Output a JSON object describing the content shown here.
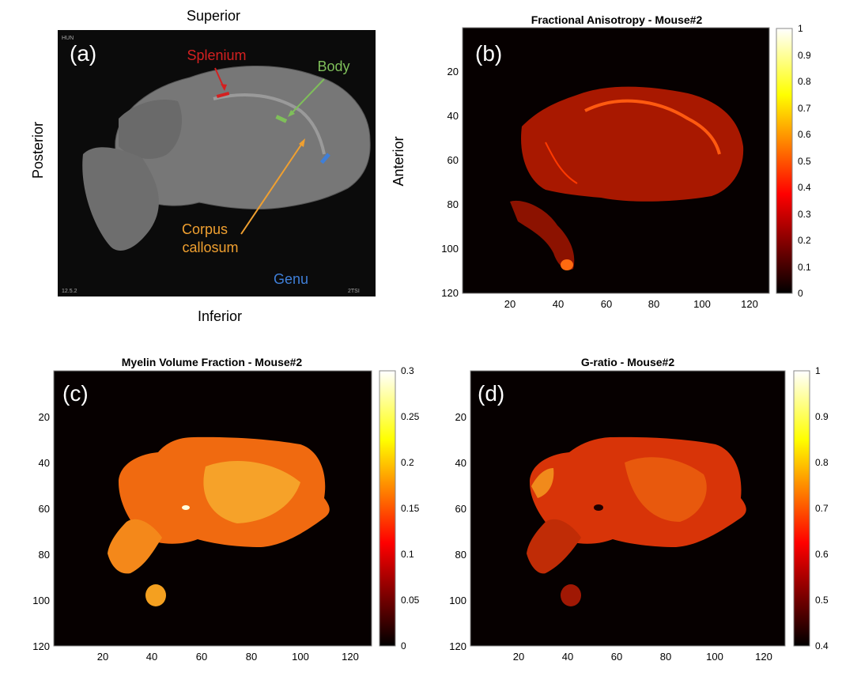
{
  "panel_a": {
    "label": "(a)",
    "orientation": {
      "top": "Superior",
      "bottom": "Inferior",
      "left": "Posterior",
      "right": "Anterior"
    },
    "annotations": [
      {
        "text": "Splenium",
        "color": "#d42020"
      },
      {
        "text": "Body",
        "color": "#7fbf5a"
      },
      {
        "text": "Corpus",
        "color": "#f0a030"
      },
      {
        "text": "callosum",
        "color": "#f0a030"
      },
      {
        "text": "Genu",
        "color": "#3f7fd8"
      }
    ]
  },
  "chart_data": [
    {
      "type": "heatmap",
      "panel": "(b)",
      "title": "Fractional Anisotropy - Mouse#2",
      "colormap": "hot",
      "xlim": [
        0,
        128
      ],
      "ylim": [
        0,
        120
      ],
      "x_ticks": [
        "20",
        "40",
        "60",
        "80",
        "100",
        "120"
      ],
      "y_ticks": [
        "20",
        "40",
        "60",
        "80",
        "100",
        "120"
      ],
      "colorbar": {
        "min": 0,
        "max": 1,
        "ticks": [
          "0",
          "0.1",
          "0.2",
          "0.3",
          "0.4",
          "0.5",
          "0.6",
          "0.7",
          "0.8",
          "0.9",
          "1"
        ]
      }
    },
    {
      "type": "heatmap",
      "panel": "(c)",
      "title": "Myelin Volume Fraction - Mouse#2",
      "colormap": "hot",
      "xlim": [
        0,
        128
      ],
      "ylim": [
        0,
        120
      ],
      "x_ticks": [
        "20",
        "40",
        "60",
        "80",
        "100",
        "120"
      ],
      "y_ticks": [
        "20",
        "40",
        "60",
        "80",
        "100",
        "120"
      ],
      "colorbar": {
        "min": 0,
        "max": 0.3,
        "ticks": [
          "0",
          "0.05",
          "0.1",
          "0.15",
          "0.2",
          "0.25",
          "0.3"
        ]
      }
    },
    {
      "type": "heatmap",
      "panel": "(d)",
      "title": "G-ratio - Mouse#2",
      "colormap": "hot",
      "xlim": [
        0,
        128
      ],
      "ylim": [
        0,
        120
      ],
      "x_ticks": [
        "20",
        "40",
        "60",
        "80",
        "100",
        "120"
      ],
      "y_ticks": [
        "20",
        "40",
        "60",
        "80",
        "100",
        "120"
      ],
      "colorbar": {
        "min": 0.4,
        "max": 1,
        "ticks": [
          "0.4",
          "0.5",
          "0.6",
          "0.7",
          "0.8",
          "0.9",
          "1"
        ]
      }
    }
  ]
}
